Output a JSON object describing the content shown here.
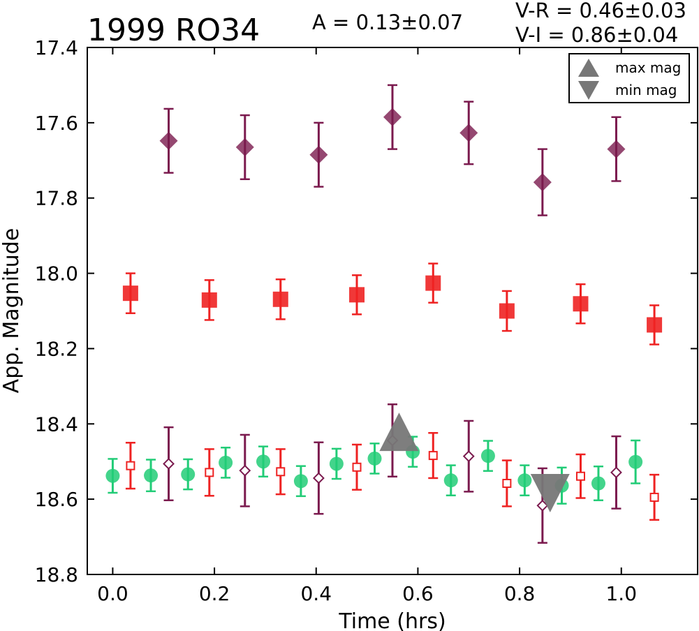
{
  "chart_data": {
    "type": "scatter",
    "title": "1999 RO34",
    "annotations": {
      "amplitude": "A  = 0.13±0.07",
      "v_r": "V-R = 0.46±0.03",
      "v_i": "V-I  = 0.86±0.04"
    },
    "xlabel": "Time (hrs)",
    "ylabel": "App. Magnitude",
    "xlim": [
      -0.05,
      1.15
    ],
    "ylim": [
      18.8,
      17.4
    ],
    "y_inverted": true,
    "grid": false,
    "legend_position": "top-right",
    "x_ticks": [
      "0.0",
      "0.2",
      "0.4",
      "0.6",
      "0.8",
      "1.0"
    ],
    "x_tick_values": [
      0.0,
      0.2,
      0.4,
      0.6,
      0.8,
      1.0
    ],
    "y_ticks": [
      "17.4",
      "17.6",
      "17.8",
      "18.0",
      "18.2",
      "18.4",
      "18.6",
      "18.8"
    ],
    "y_tick_values": [
      17.4,
      17.6,
      17.8,
      18.0,
      18.2,
      18.4,
      18.6,
      18.8
    ],
    "legend": [
      {
        "label": "max mag",
        "marker": "triangle-up"
      },
      {
        "label": "min mag",
        "marker": "triangle-down"
      }
    ],
    "series": [
      {
        "marker": "diamond-filled",
        "color": "#7b1a4e",
        "x": [
          0.11,
          0.26,
          0.405,
          0.55,
          0.7,
          0.845,
          0.99
        ],
        "y": [
          17.648,
          17.665,
          17.685,
          17.585,
          17.627,
          17.758,
          17.67
        ],
        "err": [
          0.085,
          0.085,
          0.085,
          0.085,
          0.083,
          0.088,
          0.085
        ]
      },
      {
        "marker": "square-filled",
        "color": "#ee2222",
        "x": [
          0.035,
          0.19,
          0.33,
          0.48,
          0.63,
          0.775,
          0.92,
          1.065
        ],
        "y": [
          18.053,
          18.071,
          18.069,
          18.057,
          18.026,
          18.1,
          18.081,
          18.137
        ],
        "err": [
          0.053,
          0.053,
          0.053,
          0.052,
          0.052,
          0.053,
          0.052,
          0.052
        ]
      },
      {
        "marker": "circle-filled",
        "color": "#22cc77",
        "x": [
          0.0,
          0.075,
          0.148,
          0.222,
          0.296,
          0.37,
          0.44,
          0.515,
          0.59,
          0.665,
          0.738,
          0.81,
          0.883,
          0.955,
          1.028
        ],
        "y": [
          18.538,
          18.537,
          18.534,
          18.503,
          18.5,
          18.552,
          18.506,
          18.492,
          18.474,
          18.55,
          18.485,
          18.55,
          18.564,
          18.558,
          18.501
        ],
        "err": [
          0.045,
          0.042,
          0.04,
          0.04,
          0.04,
          0.04,
          0.04,
          0.04,
          0.04,
          0.04,
          0.04,
          0.04,
          0.048,
          0.045,
          0.057
        ]
      },
      {
        "marker": "square-open",
        "color": "#ee2222",
        "x": [
          0.035,
          0.19,
          0.33,
          0.48,
          0.63,
          0.775,
          0.92,
          1.065
        ],
        "y": [
          18.511,
          18.529,
          18.527,
          18.515,
          18.484,
          18.558,
          18.539,
          18.595
        ],
        "err": [
          0.061,
          0.062,
          0.06,
          0.06,
          0.06,
          0.061,
          0.058,
          0.06
        ]
      },
      {
        "marker": "diamond-open",
        "color": "#7b1a4e",
        "x": [
          0.11,
          0.26,
          0.405,
          0.55,
          0.7,
          0.845,
          0.99
        ],
        "y": [
          18.506,
          18.524,
          18.544,
          18.444,
          18.486,
          18.617,
          18.529
        ],
        "err": [
          0.097,
          0.095,
          0.095,
          0.096,
          0.094,
          0.099,
          0.096
        ]
      },
      {
        "marker": "triangle-up",
        "color": "#777777",
        "name": "max mag",
        "x": [
          0.563
        ],
        "y": [
          18.472
        ],
        "err": [
          0
        ]
      },
      {
        "marker": "triangle-down",
        "color": "#777777",
        "name": "min mag",
        "x": [
          0.86
        ],
        "y": [
          18.585
        ],
        "err": [
          0
        ]
      }
    ]
  }
}
